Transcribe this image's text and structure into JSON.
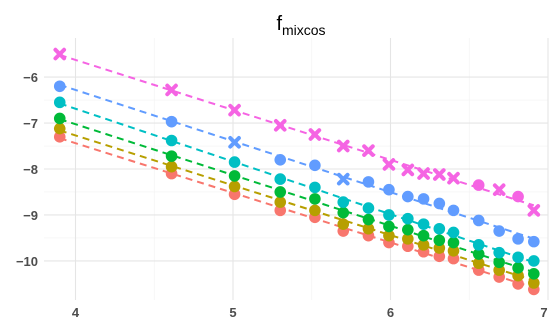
{
  "chart_data": {
    "type": "scatter",
    "title": "f",
    "title_subscript": "mixcos",
    "xlabel": "",
    "ylabel": "",
    "xlim": [
      3.8,
      7.0
    ],
    "ylim": [
      -10.85,
      -5.15
    ],
    "x_ticks": [
      4,
      5,
      6,
      7
    ],
    "x_tick_labels": [
      "4",
      "5",
      "6",
      "7"
    ],
    "y_ticks": [
      -6,
      -7,
      -8,
      -9,
      -10
    ],
    "y_tick_labels": [
      "−6",
      "−7",
      "−8",
      "−9",
      "−10"
    ],
    "grid": true,
    "legend": "none",
    "series": [
      {
        "color": "#f8766d",
        "x": [
          3.9,
          4.61,
          5.01,
          5.3,
          5.52,
          5.7,
          5.86,
          5.99,
          6.11,
          6.21,
          6.31,
          6.4,
          6.56,
          6.69,
          6.81,
          6.91
        ],
        "y": [
          -7.3,
          -8.1,
          -8.55,
          -8.9,
          -9.05,
          -9.35,
          -9.45,
          -9.6,
          -9.68,
          -9.8,
          -9.9,
          -9.95,
          -10.2,
          -10.35,
          -10.5,
          -10.62
        ],
        "markers": [
          "circle",
          "circle",
          "circle",
          "circle",
          "circle",
          "circle",
          "circle",
          "circle",
          "circle",
          "circle",
          "circle",
          "circle",
          "circle",
          "circle",
          "circle",
          "circle"
        ]
      },
      {
        "color": "#b79f00",
        "x": [
          3.9,
          4.61,
          5.01,
          5.3,
          5.52,
          5.7,
          5.86,
          5.99,
          6.11,
          6.21,
          6.31,
          6.4,
          6.56,
          6.69,
          6.81,
          6.91
        ],
        "y": [
          -7.12,
          -7.95,
          -8.38,
          -8.72,
          -8.9,
          -9.2,
          -9.3,
          -9.45,
          -9.52,
          -9.65,
          -9.72,
          -9.78,
          -10.05,
          -10.2,
          -10.32,
          -10.48
        ],
        "markers": [
          "circle",
          "circle",
          "circle",
          "circle",
          "circle",
          "circle",
          "circle",
          "circle",
          "circle",
          "circle",
          "circle",
          "circle",
          "circle",
          "circle",
          "circle",
          "circle"
        ]
      },
      {
        "color": "#00ba38",
        "x": [
          3.9,
          4.61,
          5.01,
          5.3,
          5.52,
          5.7,
          5.86,
          5.99,
          6.11,
          6.21,
          6.31,
          6.4,
          6.56,
          6.69,
          6.81,
          6.91
        ],
        "y": [
          -6.9,
          -7.72,
          -8.15,
          -8.5,
          -8.65,
          -8.95,
          -9.1,
          -9.25,
          -9.32,
          -9.45,
          -9.55,
          -9.6,
          -9.85,
          -10.03,
          -10.15,
          -10.28
        ],
        "markers": [
          "circle",
          "circle",
          "circle",
          "circle",
          "circle",
          "circle",
          "circle",
          "circle",
          "circle",
          "circle",
          "circle",
          "circle",
          "circle",
          "circle",
          "circle",
          "circle"
        ]
      },
      {
        "color": "#00bfc4",
        "x": [
          3.9,
          4.61,
          5.01,
          5.3,
          5.52,
          5.7,
          5.86,
          5.99,
          6.11,
          6.21,
          6.31,
          6.4,
          6.56,
          6.69,
          6.81,
          6.91
        ],
        "y": [
          -6.55,
          -7.38,
          -7.85,
          -8.22,
          -8.4,
          -8.72,
          -8.85,
          -9.0,
          -9.08,
          -9.2,
          -9.3,
          -9.38,
          -9.65,
          -9.82,
          -9.92,
          -10.0
        ],
        "markers": [
          "circle",
          "circle",
          "circle",
          "circle",
          "circle",
          "circle",
          "circle",
          "circle",
          "circle",
          "circle",
          "circle",
          "circle",
          "circle",
          "circle",
          "circle",
          "circle"
        ]
      },
      {
        "color": "#619cff",
        "x": [
          3.9,
          4.61,
          5.01,
          5.3,
          5.52,
          5.7,
          5.86,
          5.99,
          6.11,
          6.21,
          6.31,
          6.4,
          6.56,
          6.69,
          6.81,
          6.91
        ],
        "y": [
          -6.2,
          -6.97,
          -7.42,
          -7.8,
          -7.92,
          -8.22,
          -8.28,
          -8.45,
          -8.6,
          -8.65,
          -8.75,
          -8.9,
          -9.12,
          -9.35,
          -9.52,
          -9.58
        ],
        "markers": [
          "circle",
          "circle",
          "cross",
          "circle",
          "circle",
          "cross",
          "circle",
          "circle",
          "circle",
          "circle",
          "circle",
          "circle",
          "circle",
          "circle",
          "circle",
          "circle"
        ]
      },
      {
        "color": "#f564e3",
        "x": [
          3.9,
          4.61,
          5.01,
          5.3,
          5.52,
          5.7,
          5.86,
          5.99,
          6.11,
          6.21,
          6.31,
          6.4,
          6.56,
          6.69,
          6.81,
          6.91
        ],
        "y": [
          -5.5,
          -6.28,
          -6.72,
          -7.05,
          -7.25,
          -7.5,
          -7.6,
          -7.9,
          -8.02,
          -8.1,
          -8.12,
          -8.2,
          -8.35,
          -8.45,
          -8.6,
          -8.9
        ],
        "markers": [
          "cross",
          "cross",
          "cross",
          "cross",
          "cross",
          "cross",
          "cross",
          "cross",
          "cross",
          "cross",
          "cross",
          "cross",
          "circle",
          "cross",
          "circle",
          "cross"
        ]
      }
    ]
  }
}
